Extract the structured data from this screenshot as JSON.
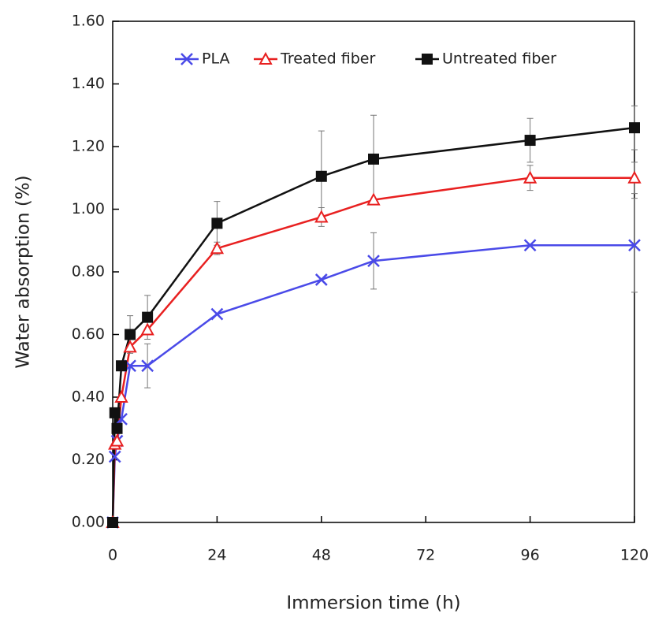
{
  "chart_data": {
    "type": "line",
    "x_label": "Immersion time (h)",
    "y_label": "Water absorption  (%)",
    "xlim": [
      0,
      120
    ],
    "xticks": [
      0,
      24,
      48,
      72,
      96,
      120
    ],
    "ylim": [
      0,
      1.6
    ],
    "yticks": [
      {
        "value": 0,
        "label": "0.00"
      },
      {
        "value": 0.2,
        "label": "0.20"
      },
      {
        "value": 0.4,
        "label": "0.40"
      },
      {
        "value": 0.6,
        "label": "0.60"
      },
      {
        "value": 0.8,
        "label": "0.80"
      },
      {
        "value": 1.0,
        "label": "1.00"
      },
      {
        "value": 1.2,
        "label": "1.20"
      },
      {
        "value": 1.4,
        "label": "1.40"
      },
      {
        "value": 1.6,
        "label": "1.60"
      }
    ],
    "x": [
      0,
      0.5,
      1,
      2,
      4,
      8,
      24,
      48,
      60,
      96,
      120
    ],
    "legend": "top",
    "series": [
      {
        "name": "PLA",
        "color": "#4a4ae8",
        "marker": "x",
        "values": [
          0,
          0.21,
          0.26,
          0.33,
          0.5,
          0.5,
          0.665,
          0.775,
          0.835,
          0.885,
          0.885
        ],
        "errors": [
          null,
          null,
          null,
          null,
          null,
          0.07,
          null,
          null,
          0.09,
          null,
          0.15
        ]
      },
      {
        "name": "Treated fiber",
        "color": "#e82020",
        "marker": "triangle",
        "values": [
          0,
          0.25,
          0.26,
          0.4,
          0.56,
          0.615,
          0.875,
          0.975,
          1.03,
          1.1,
          1.1
        ],
        "errors": [
          null,
          null,
          null,
          null,
          null,
          null,
          0.02,
          0.03,
          null,
          0.04,
          0.05
        ]
      },
      {
        "name": "Untreated fiber",
        "color": "#111111",
        "marker": "square",
        "values": [
          0,
          0.35,
          0.3,
          0.5,
          0.6,
          0.655,
          0.955,
          1.105,
          1.16,
          1.22,
          1.26
        ],
        "errors": [
          null,
          null,
          null,
          null,
          0.06,
          0.07,
          0.07,
          0.145,
          0.14,
          0.07,
          0.07
        ]
      }
    ]
  }
}
